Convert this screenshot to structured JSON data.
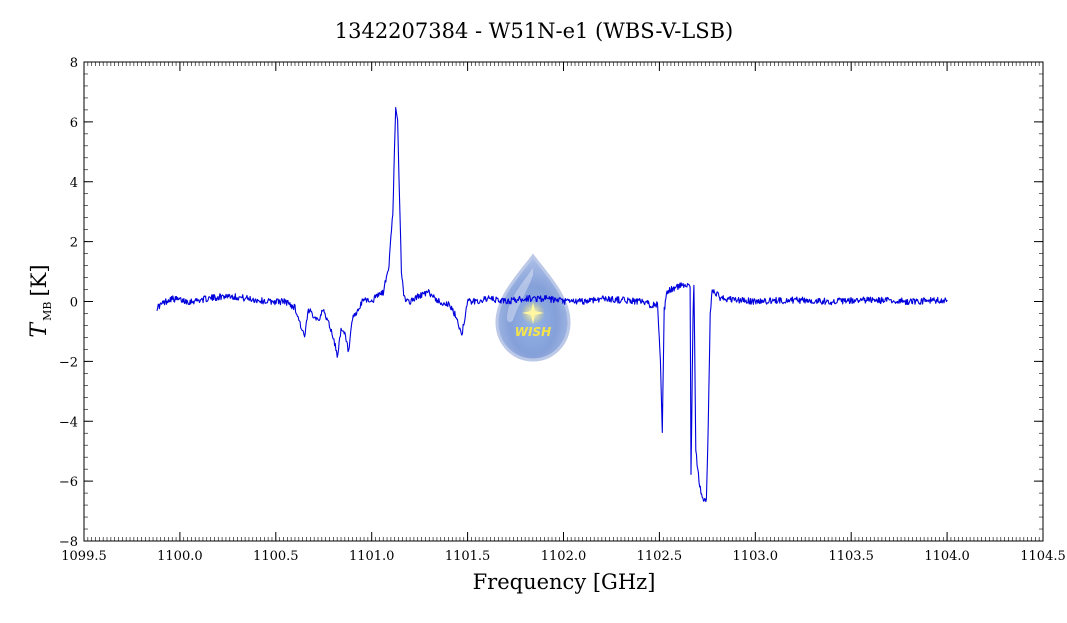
{
  "chart_data": {
    "type": "line",
    "title": "1342207384 - W51N-e1 (WBS-V-LSB)",
    "xlabel": "Frequency [GHz]",
    "ylabel_symbol": "T",
    "ylabel_subscript": "MB",
    "ylabel_unit": "[K]",
    "xlim": [
      1099.5,
      1104.5
    ],
    "ylim": [
      -8,
      8
    ],
    "x_ticks": [
      1099.5,
      1100.0,
      1100.5,
      1101.0,
      1101.5,
      1102.0,
      1102.5,
      1103.0,
      1103.5,
      1104.0,
      1104.5
    ],
    "x_tick_labels": [
      "1099.5",
      "1100.0",
      "1100.5",
      "1101.0",
      "1101.5",
      "1102.0",
      "1102.5",
      "1103.0",
      "1103.5",
      "1104.0",
      "1104.5"
    ],
    "y_ticks": [
      -8,
      -6,
      -4,
      -2,
      0,
      2,
      4,
      6,
      8
    ],
    "y_tick_labels": [
      "−8",
      "−6",
      "−4",
      "−2",
      "0",
      "2",
      "4",
      "6",
      "8"
    ],
    "grid": false,
    "series": [
      {
        "color": "#0000dd",
        "x": [
          1099.88,
          1099.95,
          1100.05,
          1100.15,
          1100.25,
          1100.35,
          1100.45,
          1100.55,
          1100.6,
          1100.62,
          1100.65,
          1100.67,
          1100.69,
          1100.72,
          1100.75,
          1100.78,
          1100.8,
          1100.82,
          1100.84,
          1100.86,
          1100.88,
          1100.9,
          1100.93,
          1100.96,
          1101.0,
          1101.03,
          1101.06,
          1101.09,
          1101.11,
          1101.125,
          1101.135,
          1101.145,
          1101.155,
          1101.17,
          1101.2,
          1101.25,
          1101.3,
          1101.35,
          1101.4,
          1101.44,
          1101.47,
          1101.5,
          1101.55,
          1101.6,
          1101.7,
          1101.8,
          1101.9,
          1102.0,
          1102.1,
          1102.2,
          1102.3,
          1102.4,
          1102.45,
          1102.49,
          1102.505,
          1102.515,
          1102.525,
          1102.54,
          1102.56,
          1102.6,
          1102.64,
          1102.66,
          1102.665,
          1102.675,
          1102.68,
          1102.69,
          1102.71,
          1102.73,
          1102.745,
          1102.755,
          1102.765,
          1102.775,
          1102.79,
          1102.82,
          1102.9,
          1103.0,
          1103.2,
          1103.4,
          1103.6,
          1103.8,
          1104.0
        ],
        "y": [
          -0.2,
          0.1,
          0.0,
          0.1,
          0.2,
          0.1,
          0.0,
          0.0,
          -0.2,
          -0.6,
          -1.2,
          -0.3,
          -0.4,
          -0.6,
          -0.3,
          -0.8,
          -1.2,
          -1.8,
          -1.0,
          -1.1,
          -1.7,
          -0.6,
          -0.3,
          0.1,
          0.0,
          0.2,
          0.3,
          1.2,
          3.0,
          6.4,
          6.0,
          3.5,
          1.0,
          0.1,
          0.0,
          0.2,
          0.3,
          0.0,
          -0.1,
          -0.5,
          -1.1,
          0.0,
          0.0,
          0.1,
          0.0,
          0.1,
          0.1,
          0.0,
          0.0,
          0.1,
          0.05,
          0.0,
          -0.1,
          -0.1,
          -2.0,
          -4.4,
          -0.3,
          0.3,
          0.4,
          0.5,
          0.6,
          0.5,
          -5.8,
          -0.5,
          0.6,
          -5.0,
          -6.2,
          -6.6,
          -6.7,
          -4.0,
          -0.4,
          0.3,
          0.3,
          0.1,
          0.05,
          0.0,
          0.05,
          0.0,
          0.05,
          0.0,
          0.05
        ]
      }
    ],
    "watermark_text": "WISH"
  }
}
